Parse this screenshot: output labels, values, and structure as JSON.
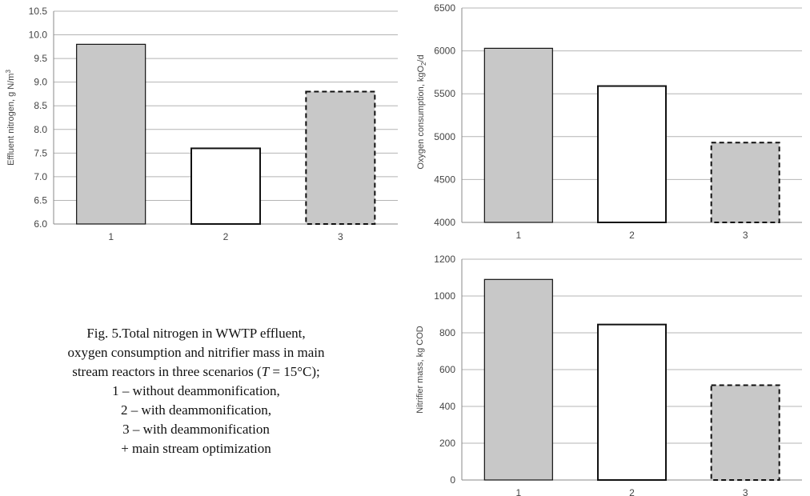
{
  "chart_data": [
    {
      "type": "bar",
      "categories": [
        "1",
        "2",
        "3"
      ],
      "values": [
        9.8,
        7.6,
        8.8
      ],
      "ylabel": "Effluent nitrogen, g N/m",
      "ylabel_sup": "3",
      "ylim": [
        6.0,
        10.5
      ],
      "yticks": [
        "6.0",
        "6.5",
        "7.0",
        "7.5",
        "8.0",
        "8.5",
        "9.0",
        "9.5",
        "10.0",
        "10.5"
      ],
      "grid": true,
      "bar_styles": [
        "gray-solid",
        "white-solid",
        "gray-dashed"
      ]
    },
    {
      "type": "bar",
      "categories": [
        "1",
        "2",
        "3"
      ],
      "values": [
        6030,
        5590,
        4930
      ],
      "ylabel": "Oxygen consumption, kgO",
      "ylabel_sub": "2",
      "ylabel_tail": "/d",
      "ylim": [
        4000,
        6500
      ],
      "yticks": [
        "4000",
        "4500",
        "5000",
        "5500",
        "6000",
        "6500"
      ],
      "grid": true,
      "bar_styles": [
        "gray-solid",
        "white-solid",
        "gray-dashed"
      ]
    },
    {
      "type": "bar",
      "categories": [
        "1",
        "2",
        "3"
      ],
      "values": [
        1090,
        845,
        515
      ],
      "ylabel": "Nitrifier mass, kg COD",
      "ylim": [
        0,
        1200
      ],
      "yticks": [
        "0",
        "200",
        "400",
        "600",
        "800",
        "1000",
        "1200"
      ],
      "grid": true,
      "bar_styles": [
        "gray-solid",
        "white-solid",
        "gray-dashed"
      ]
    }
  ],
  "caption": {
    "line1": "Fig. 5.Total nitrogen in WWTP effluent,",
    "line2": "oxygen consumption and nitrifier mass in main",
    "line3_pre": "stream reactors in three scenarios (",
    "line3_var": "T",
    "line3_post": " = 15°C);",
    "line4": "1 – without deammonification,",
    "line5": "2 – with deammonification,",
    "line6": "3 – with deammonification",
    "line7": "+ main stream optimization"
  },
  "colors": {
    "bar_gray": "#c8c8c8",
    "bar_white": "#ffffff",
    "bar_stroke": "#111111",
    "grid": "#b4b4b4",
    "axis": "#888888",
    "text": "#444444"
  }
}
